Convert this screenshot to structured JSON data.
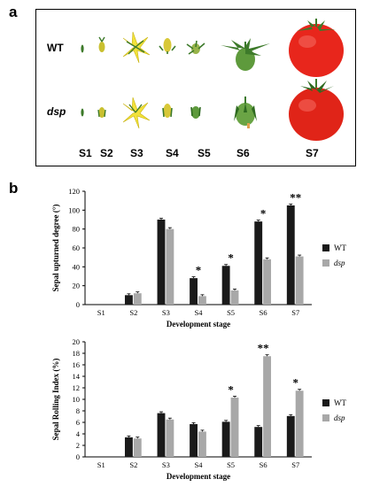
{
  "panels": {
    "a": "a",
    "b": "b"
  },
  "photo": {
    "rows": [
      {
        "label": "WT"
      },
      {
        "label": "dsp"
      }
    ],
    "stages": [
      "S1",
      "S2",
      "S3",
      "S4",
      "S5",
      "S6",
      "S7"
    ],
    "colors": {
      "tomato": "#e8261c",
      "flower": "#f2e23a",
      "sepal": "#3d7a2a"
    }
  },
  "chart_data": [
    {
      "type": "bar",
      "title": "",
      "ylabel": "Sepal upturned degree (°)",
      "xlabel": "Development   stage",
      "categories": [
        "S1",
        "S2",
        "S3",
        "S4",
        "S5",
        "S6",
        "S7"
      ],
      "ylim": [
        0,
        120
      ],
      "yticks": [
        0,
        20,
        40,
        60,
        80,
        100,
        120
      ],
      "series": [
        {
          "name": "WT",
          "color": "#1a1a1a",
          "values": [
            0,
            10,
            90,
            28,
            41,
            88,
            105
          ]
        },
        {
          "name": "dsp",
          "color": "#a8a8a8",
          "values": [
            0,
            12,
            80,
            9,
            15,
            48,
            51
          ]
        }
      ],
      "significance": [
        "",
        "",
        "",
        "*",
        "*",
        "*",
        "**"
      ],
      "legend": "right"
    },
    {
      "type": "bar",
      "title": "",
      "ylabel": "Sepal Rolling Index (%)",
      "xlabel": "Development   stage",
      "categories": [
        "S1",
        "S2",
        "S3",
        "S4",
        "S5",
        "S6",
        "S7"
      ],
      "ylim": [
        0,
        20
      ],
      "yticks": [
        0,
        2,
        4,
        6,
        8,
        10,
        12,
        14,
        16,
        18,
        20
      ],
      "series": [
        {
          "name": "WT",
          "color": "#1a1a1a",
          "values": [
            0,
            3.4,
            7.6,
            5.7,
            6.1,
            5.2,
            7.1
          ]
        },
        {
          "name": "dsp",
          "color": "#a8a8a8",
          "values": [
            0,
            3.2,
            6.5,
            4.4,
            10.3,
            17.5,
            11.5
          ]
        }
      ],
      "significance": [
        "",
        "",
        "",
        "",
        "*",
        "**",
        "*"
      ],
      "legend": "right"
    }
  ]
}
